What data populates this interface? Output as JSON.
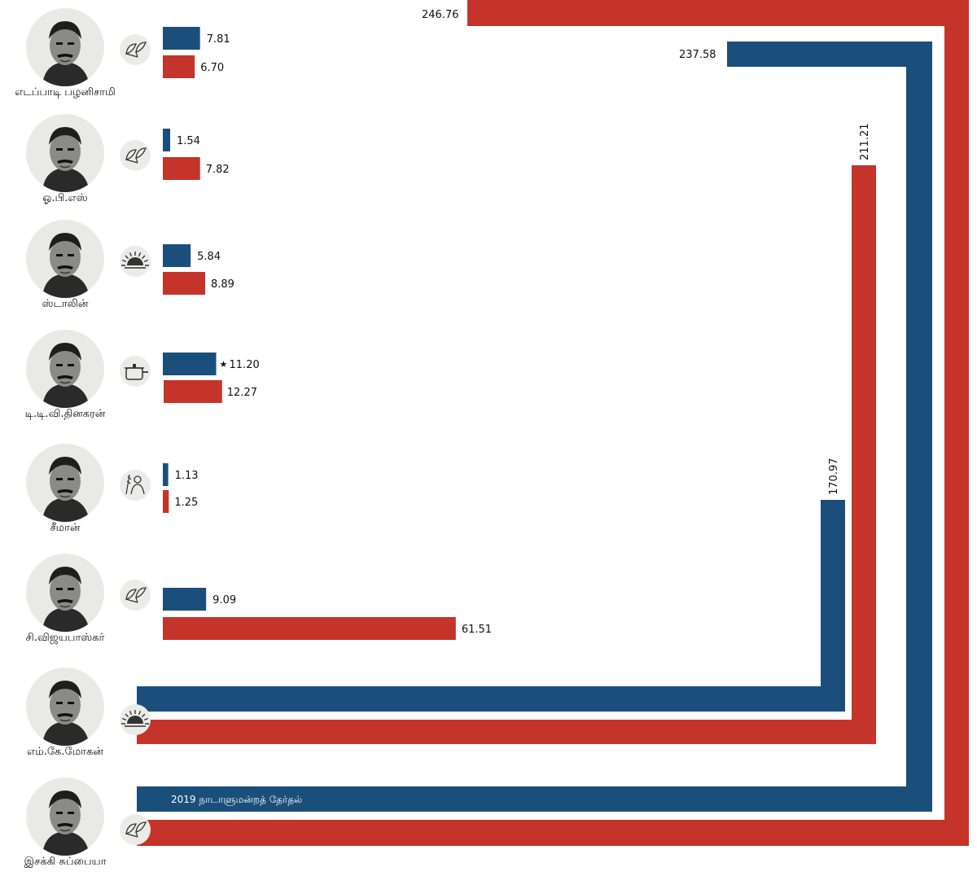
{
  "colors": {
    "blue": "#1b4f7b",
    "red": "#c5342a"
  },
  "chart_data": {
    "type": "bar",
    "orientation": "horizontal",
    "categories": [
      "எடப்பாடி பழனிசாமி",
      "ஓ.பி.எஸ்",
      "ஸ்டாலின்",
      "டி.டி.வி.தினகரன்",
      "சீமான்",
      "சி.விஜயபாஸ்கர்",
      "எம்.கே.மோகன்",
      "இசக்கி சுப்பையா"
    ],
    "symbols": [
      "leaf-icon",
      "leaf-icon",
      "rising-sun-icon",
      "pressure-cooker-icon",
      "farmer-icon",
      "leaf-icon",
      "rising-sun-icon",
      "leaf-icon"
    ],
    "series": [
      {
        "color": "#1b4f7b",
        "values": [
          7.81,
          1.54,
          5.84,
          11.2,
          1.13,
          9.09,
          170.97,
          237.58
        ],
        "labels": [
          "7.81",
          "1.54",
          "5.84",
          "11.20",
          "1.13",
          "9.09",
          "170.97",
          "237.58"
        ]
      },
      {
        "color": "#c5342a",
        "values": [
          6.7,
          7.82,
          8.89,
          12.27,
          1.25,
          61.51,
          211.21,
          246.76
        ],
        "labels": [
          "6.70",
          "7.82",
          "8.89",
          "12.27",
          "1.25",
          "61.51",
          "211.21",
          "246.76"
        ]
      }
    ],
    "star_marker": {
      "text": "★"
    },
    "annotation": "2019 நாடாளுமன்றத் தேர்தல்"
  }
}
